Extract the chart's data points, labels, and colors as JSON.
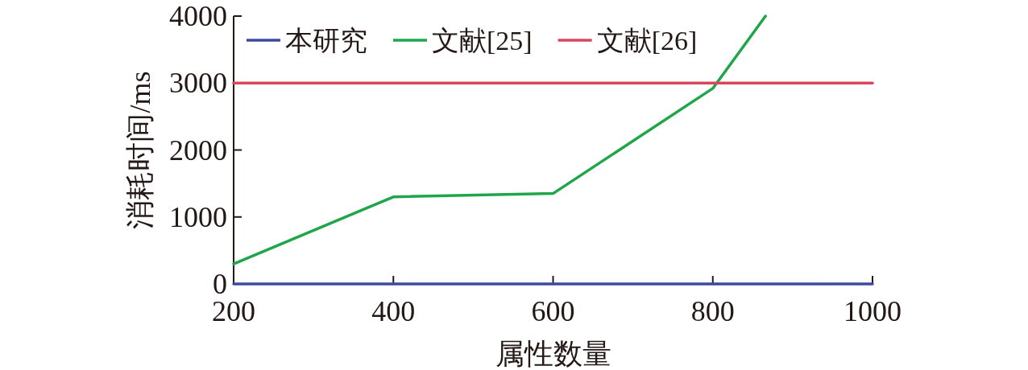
{
  "chart_data": {
    "type": "line",
    "xlabel": "属性数量",
    "ylabel": "消耗时间/ms",
    "series": [
      {
        "name": "本研究",
        "color": "#3b4c9f",
        "x": [
          200,
          1000
        ],
        "values": [
          0,
          0
        ]
      },
      {
        "name": "文献[25]",
        "color": "#1fa64a",
        "x": [
          200,
          400,
          600,
          800,
          866
        ],
        "values": [
          300,
          1300,
          1350,
          2920,
          4000
        ]
      },
      {
        "name": "文献[26]",
        "color": "#d8485c",
        "x": [
          200,
          1000
        ],
        "values": [
          3000,
          3000
        ]
      }
    ],
    "xlim": [
      200,
      1000
    ],
    "xticks": [
      200,
      400,
      600,
      800,
      1000
    ],
    "ylim": [
      0,
      4000
    ],
    "yticks": [
      0,
      1000,
      2000,
      3000,
      4000
    ],
    "grid": false,
    "legend": "top left",
    "marker": "none",
    "line_style": "solid"
  }
}
